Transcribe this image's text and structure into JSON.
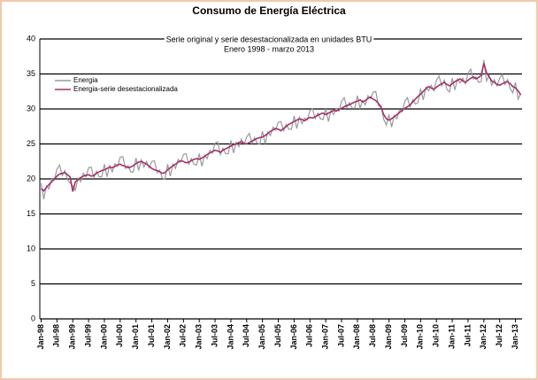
{
  "chart_data": {
    "type": "line",
    "title": "Consumo de Energía Eléctrica",
    "subtitle": [
      "Serie original y serie desestacionalizada en unidades BTU",
      "Enero 1998 - marzo 2013"
    ],
    "categories": [
      "Jan-98",
      null,
      null,
      null,
      null,
      null,
      "Jul-98",
      null,
      null,
      null,
      null,
      null,
      "Jan-99",
      null,
      null,
      null,
      null,
      null,
      "Jul-99",
      null,
      null,
      null,
      null,
      null,
      "Jan-00",
      null,
      null,
      null,
      null,
      null,
      "Jul-00",
      null,
      null,
      null,
      null,
      null,
      "Jan-01",
      null,
      null,
      null,
      null,
      null,
      "Jul-01",
      null,
      null,
      null,
      null,
      null,
      "Jan-02",
      null,
      null,
      null,
      null,
      null,
      "Jul-02",
      null,
      null,
      null,
      null,
      null,
      "Jan-03",
      null,
      null,
      null,
      null,
      null,
      "Jul-03",
      null,
      null,
      null,
      null,
      null,
      "Jan-04",
      null,
      null,
      null,
      null,
      null,
      "Jul-04",
      null,
      null,
      null,
      null,
      null,
      "Jan-05",
      null,
      null,
      null,
      null,
      null,
      "Jul-05",
      null,
      null,
      null,
      null,
      null,
      "Jan-06",
      null,
      null,
      null,
      null,
      null,
      "Jul-06",
      null,
      null,
      null,
      null,
      null,
      "Jan-07",
      null,
      null,
      null,
      null,
      null,
      "Jul-07",
      null,
      null,
      null,
      null,
      null,
      "Jan-08",
      null,
      null,
      null,
      null,
      null,
      "Jul-08",
      null,
      null,
      null,
      null,
      null,
      "Jan-09",
      null,
      null,
      null,
      null,
      null,
      "Jul-09",
      null,
      null,
      null,
      null,
      null,
      "Jan-10",
      null,
      null,
      null,
      null,
      null,
      "Jul-10",
      null,
      null,
      null,
      null,
      null,
      "Jan-11",
      null,
      null,
      null,
      null,
      null,
      "Jul-11",
      null,
      null,
      null,
      null,
      null,
      "Jan-12",
      null,
      null,
      null,
      null,
      null,
      "Jul-12",
      null,
      null,
      null,
      null,
      null,
      "Jan-13",
      null,
      null
    ],
    "series": [
      {
        "name": "Energia",
        "color": "#9a9a9a",
        "values": [
          19.4,
          17.1,
          19.0,
          18.6,
          20.0,
          19.8,
          21.4,
          22.0,
          20.5,
          21.2,
          19.9,
          19.4,
          19.0,
          18.4,
          20.1,
          19.6,
          20.8,
          20.3,
          21.6,
          21.7,
          20.2,
          21.1,
          20.3,
          20.3,
          22.1,
          20.3,
          21.9,
          21.0,
          22.2,
          21.8,
          23.1,
          23.2,
          21.5,
          21.9,
          21.0,
          21.0,
          23.0,
          21.2,
          22.7,
          21.7,
          22.5,
          21.6,
          22.5,
          22.6,
          20.9,
          21.3,
          20.1,
          20.0,
          22.1,
          20.4,
          22.1,
          21.5,
          22.8,
          22.4,
          23.5,
          23.6,
          22.1,
          22.9,
          22.1,
          22.0,
          23.6,
          21.8,
          23.4,
          22.9,
          24.1,
          23.7,
          25.1,
          25.3,
          23.5,
          24.4,
          23.6,
          23.6,
          25.5,
          23.7,
          25.2,
          24.6,
          25.7,
          24.9,
          26.0,
          26.5,
          25.1,
          25.9,
          25.1,
          25.0,
          26.8,
          25.0,
          26.7,
          26.2,
          27.4,
          27.0,
          28.1,
          28.2,
          26.9,
          27.8,
          27.1,
          27.1,
          29.0,
          27.2,
          28.8,
          27.9,
          28.7,
          28.4,
          29.8,
          30.0,
          28.6,
          29.4,
          28.6,
          28.5,
          30.0,
          28.2,
          29.8,
          29.2,
          30.1,
          29.7,
          31.1,
          31.6,
          30.2,
          30.9,
          30.1,
          30.1,
          31.9,
          30.1,
          31.2,
          30.6,
          31.9,
          31.5,
          32.4,
          32.5,
          30.5,
          30.5,
          28.5,
          27.7,
          29.2,
          27.4,
          29.1,
          28.6,
          29.9,
          29.6,
          31.1,
          31.6,
          30.3,
          31.3,
          30.7,
          30.9,
          32.9,
          31.3,
          33.1,
          32.6,
          33.4,
          32.6,
          34.1,
          34.7,
          33.3,
          34.1,
          32.8,
          32.4,
          34.4,
          32.7,
          34.3,
          33.7,
          34.4,
          33.6,
          35.1,
          35.7,
          34.3,
          34.6,
          33.8,
          33.9,
          37.0,
          34.0,
          34.8,
          33.4,
          34.2,
          33.3,
          34.4,
          34.9,
          33.5,
          34.2,
          32.9,
          32.3,
          33.8,
          31.4,
          32.2
        ]
      },
      {
        "name": "Energia-serie desestacionalizada",
        "color": "#a3306c",
        "values": [
          18.6,
          18.3,
          18.8,
          19.2,
          19.6,
          20.0,
          20.4,
          20.7,
          20.8,
          20.9,
          20.6,
          20.3,
          18.2,
          19.6,
          19.9,
          20.2,
          20.4,
          20.5,
          20.6,
          20.4,
          20.5,
          20.8,
          21.0,
          21.2,
          21.3,
          21.5,
          21.7,
          21.6,
          21.8,
          22.0,
          22.1,
          21.9,
          21.8,
          21.6,
          21.7,
          21.9,
          22.2,
          22.4,
          22.5,
          22.3,
          22.1,
          21.8,
          21.5,
          21.3,
          21.2,
          21.0,
          20.8,
          20.9,
          21.3,
          21.6,
          21.9,
          22.1,
          22.4,
          22.6,
          22.5,
          22.3,
          22.4,
          22.6,
          22.8,
          22.9,
          22.8,
          23.0,
          23.2,
          23.5,
          23.7,
          23.9,
          24.1,
          24.0,
          23.8,
          24.1,
          24.3,
          24.5,
          24.7,
          24.9,
          25.0,
          25.2,
          25.3,
          25.1,
          25.0,
          25.2,
          25.4,
          25.6,
          25.8,
          25.9,
          26.0,
          26.2,
          26.5,
          26.8,
          27.0,
          27.2,
          27.1,
          26.9,
          27.2,
          27.5,
          27.8,
          28.0,
          28.2,
          28.4,
          28.6,
          28.5,
          28.3,
          28.6,
          28.8,
          28.7,
          28.9,
          29.1,
          29.3,
          29.4,
          29.2,
          29.4,
          29.6,
          29.8,
          29.7,
          29.9,
          30.1,
          30.3,
          30.5,
          30.6,
          30.8,
          31.0,
          31.1,
          31.3,
          31.0,
          31.2,
          31.5,
          31.7,
          31.4,
          31.2,
          30.8,
          30.2,
          29.2,
          28.6,
          28.4,
          28.6,
          28.9,
          29.2,
          29.5,
          29.8,
          30.1,
          30.3,
          30.6,
          31.0,
          31.4,
          31.8,
          32.1,
          32.5,
          32.9,
          33.2,
          33.0,
          32.8,
          33.1,
          33.4,
          33.6,
          33.8,
          33.5,
          33.3,
          33.6,
          33.9,
          34.1,
          34.3,
          34.0,
          33.8,
          34.1,
          34.4,
          34.6,
          34.3,
          34.5,
          34.8,
          36.5,
          35.2,
          34.6,
          34.0,
          33.8,
          33.5,
          33.4,
          33.6,
          33.8,
          33.9,
          33.6,
          33.2,
          33.0,
          32.6,
          32.0
        ]
      }
    ],
    "ylim": [
      0,
      40
    ],
    "yticks": [
      0,
      5,
      10,
      15,
      20,
      25,
      30,
      35,
      40
    ],
    "grid": true,
    "legend": "top-left"
  }
}
